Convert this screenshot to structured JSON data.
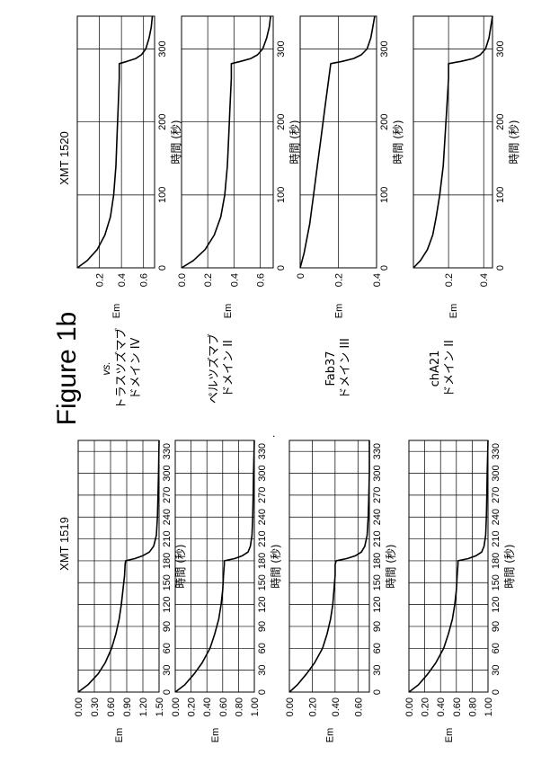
{
  "figure_label": "Figure 1b",
  "vs_label": "vs.",
  "group_titles": {
    "left": "XMT 1519",
    "right": "XMT 1520"
  },
  "x_axis_label": "時間 (秒)",
  "y_axis_label": "Em",
  "stray_mark": ".",
  "row_labels": [
    [
      "トラスツズマブ",
      "ドメイン IV"
    ],
    [
      "ペルツズマブ",
      "ドメイン II"
    ],
    [
      "Fab37",
      "ドメイン III"
    ],
    [
      "chA21",
      "ドメイン II"
    ]
  ],
  "chart_data": [
    {
      "type": "line",
      "group": "XMT 1519",
      "row": 0,
      "xlabel": "時間 (秒)",
      "ylabel": "Em",
      "xlim": [
        0,
        345
      ],
      "ylim": [
        0,
        1.5
      ],
      "xticks": [
        0,
        30,
        60,
        90,
        120,
        150,
        180,
        210,
        240,
        270,
        300,
        330
      ],
      "xtick_labels": [
        "0",
        "30",
        "60",
        "90",
        "120",
        "150",
        "180",
        "210",
        "240",
        "270",
        "300",
        "330"
      ],
      "yticks": [
        0,
        0.3,
        0.6,
        0.9,
        1.2,
        1.5
      ],
      "ytick_labels": [
        "0.00",
        "0.30",
        "0.60",
        "0.90",
        "1.20",
        "1.50"
      ],
      "grid": true,
      "series": [
        {
          "x": [
            0,
            10,
            25,
            40,
            60,
            80,
            100,
            120,
            140,
            160,
            175,
            180,
            183,
            187,
            192,
            200,
            215,
            240,
            270,
            300,
            345
          ],
          "y": [
            0,
            0.18,
            0.37,
            0.5,
            0.62,
            0.7,
            0.76,
            0.8,
            0.83,
            0.86,
            0.87,
            0.88,
            1.05,
            1.2,
            1.32,
            1.4,
            1.45,
            1.47,
            1.48,
            1.49,
            1.5
          ]
        }
      ]
    },
    {
      "type": "line",
      "group": "XMT 1519",
      "row": 1,
      "xlabel": "時間 (秒)",
      "ylabel": "Em",
      "xlim": [
        0,
        345
      ],
      "ylim": [
        0,
        1.0
      ],
      "xticks": [
        0,
        30,
        60,
        90,
        120,
        150,
        180,
        210,
        240,
        270,
        300,
        330
      ],
      "xtick_labels": [
        "0",
        "30",
        "60",
        "90",
        "120",
        "150",
        "180",
        "210",
        "240",
        "270",
        "300",
        "330"
      ],
      "yticks": [
        0,
        0.2,
        0.4,
        0.6,
        0.8,
        1.0
      ],
      "ytick_labels": [
        "0.00",
        "0.20",
        "0.40",
        "0.60",
        "0.80",
        "1.00"
      ],
      "grid": true,
      "series": [
        {
          "x": [
            0,
            10,
            25,
            40,
            60,
            80,
            100,
            120,
            140,
            160,
            175,
            180,
            183,
            187,
            192,
            200,
            215,
            240,
            270,
            300,
            345
          ],
          "y": [
            0,
            0.12,
            0.24,
            0.34,
            0.44,
            0.5,
            0.55,
            0.58,
            0.6,
            0.61,
            0.62,
            0.62,
            0.75,
            0.85,
            0.92,
            0.95,
            0.97,
            0.98,
            0.985,
            0.99,
            1.0
          ]
        }
      ]
    },
    {
      "type": "line",
      "group": "XMT 1519",
      "row": 2,
      "xlabel": "時間 (秒)",
      "ylabel": "Em",
      "xlim": [
        0,
        345
      ],
      "ylim": [
        0,
        0.7
      ],
      "xticks": [
        0,
        30,
        60,
        90,
        120,
        150,
        180,
        210,
        240,
        270,
        300,
        330
      ],
      "xtick_labels": [
        "0",
        "30",
        "60",
        "90",
        "120",
        "150",
        "180",
        "210",
        "240",
        "270",
        "300",
        "330"
      ],
      "yticks": [
        0,
        0.2,
        0.4,
        0.6
      ],
      "ytick_labels": [
        "0.00",
        "0.20",
        "0.40",
        "0.60"
      ],
      "grid": true,
      "series": [
        {
          "x": [
            0,
            10,
            25,
            40,
            60,
            80,
            100,
            120,
            140,
            160,
            175,
            180,
            183,
            187,
            192,
            200,
            215,
            240,
            270,
            300,
            345
          ],
          "y": [
            0,
            0.07,
            0.15,
            0.22,
            0.29,
            0.33,
            0.36,
            0.38,
            0.39,
            0.4,
            0.4,
            0.41,
            0.5,
            0.58,
            0.63,
            0.66,
            0.68,
            0.69,
            0.695,
            0.7,
            0.7
          ]
        }
      ]
    },
    {
      "type": "line",
      "group": "XMT 1519",
      "row": 3,
      "xlabel": "時間 (秒)",
      "ylabel": "Em",
      "xlim": [
        0,
        345
      ],
      "ylim": [
        0,
        1.0
      ],
      "xticks": [
        0,
        30,
        60,
        90,
        120,
        150,
        180,
        210,
        240,
        270,
        300,
        330
      ],
      "xtick_labels": [
        "0",
        "30",
        "60",
        "90",
        "120",
        "150",
        "180",
        "210",
        "240",
        "270",
        "300",
        "330"
      ],
      "yticks": [
        0,
        0.2,
        0.4,
        0.6,
        0.8,
        1.0
      ],
      "ytick_labels": [
        "0.00",
        "0.20",
        "0.40",
        "0.60",
        "0.80",
        "1.00"
      ],
      "grid": true,
      "series": [
        {
          "x": [
            0,
            10,
            25,
            40,
            60,
            80,
            100,
            120,
            140,
            160,
            175,
            180,
            183,
            187,
            192,
            200,
            215,
            240,
            270,
            300,
            345
          ],
          "y": [
            0,
            0.12,
            0.24,
            0.34,
            0.44,
            0.5,
            0.55,
            0.58,
            0.6,
            0.61,
            0.62,
            0.62,
            0.75,
            0.85,
            0.92,
            0.95,
            0.97,
            0.98,
            0.985,
            0.99,
            1.0
          ]
        }
      ]
    },
    {
      "type": "line",
      "group": "XMT 1520",
      "row": 0,
      "xlabel": "時間 (秒)",
      "ylabel": "Em",
      "xlim": [
        0,
        345
      ],
      "ylim": [
        0,
        0.7
      ],
      "xticks": [
        0,
        100,
        200,
        300
      ],
      "xtick_labels": [
        "0",
        "100",
        "200",
        "300"
      ],
      "yticks": [
        0.2,
        0.4,
        0.6
      ],
      "ytick_labels": [
        "0.2",
        "0.4",
        "0.6"
      ],
      "grid": true,
      "series": [
        {
          "x": [
            0,
            10,
            25,
            45,
            70,
            100,
            140,
            180,
            220,
            260,
            280,
            283,
            287,
            292,
            300,
            315,
            330,
            345
          ],
          "y": [
            0,
            0.09,
            0.18,
            0.25,
            0.3,
            0.33,
            0.35,
            0.36,
            0.37,
            0.38,
            0.38,
            0.45,
            0.53,
            0.58,
            0.62,
            0.65,
            0.67,
            0.68
          ]
        }
      ]
    },
    {
      "type": "line",
      "group": "XMT 1520",
      "row": 1,
      "xlabel": "時間 (秒)",
      "ylabel": "Em",
      "xlim": [
        0,
        345
      ],
      "ylim": [
        0,
        0.7
      ],
      "xticks": [
        0,
        100,
        200,
        300
      ],
      "xtick_labels": [
        "0",
        "100",
        "200",
        "300"
      ],
      "yticks": [
        0,
        0.2,
        0.4,
        0.6
      ],
      "ytick_labels": [
        "0.0",
        "0.2",
        "0.4",
        "0.6"
      ],
      "grid": true,
      "series": [
        {
          "x": [
            0,
            10,
            25,
            45,
            70,
            100,
            140,
            180,
            220,
            260,
            280,
            283,
            287,
            292,
            300,
            315,
            330,
            345
          ],
          "y": [
            0,
            0.09,
            0.18,
            0.25,
            0.3,
            0.33,
            0.35,
            0.36,
            0.37,
            0.38,
            0.38,
            0.45,
            0.53,
            0.58,
            0.62,
            0.65,
            0.67,
            0.68
          ]
        }
      ]
    },
    {
      "type": "line",
      "group": "XMT 1520",
      "row": 2,
      "xlabel": "時間 (秒)",
      "ylabel": "Em",
      "xlim": [
        0,
        345
      ],
      "ylim": [
        0,
        0.4
      ],
      "xticks": [
        0,
        100,
        200,
        300
      ],
      "xtick_labels": [
        "0",
        "100",
        "200",
        "300"
      ],
      "yticks": [
        0,
        0.2,
        0.4
      ],
      "ytick_labels": [
        "0",
        "0.2",
        "0.4"
      ],
      "grid": true,
      "series": [
        {
          "x": [
            0,
            20,
            60,
            100,
            140,
            180,
            220,
            260,
            280,
            283,
            287,
            292,
            300,
            315,
            330,
            345
          ],
          "y": [
            0,
            0.02,
            0.05,
            0.07,
            0.09,
            0.11,
            0.13,
            0.15,
            0.16,
            0.22,
            0.28,
            0.32,
            0.35,
            0.37,
            0.38,
            0.39
          ]
        }
      ]
    },
    {
      "type": "line",
      "group": "XMT 1520",
      "row": 3,
      "xlabel": "時間 (秒)",
      "ylabel": "Em",
      "xlim": [
        0,
        345
      ],
      "ylim": [
        0,
        0.45
      ],
      "xticks": [
        0,
        100,
        200,
        300
      ],
      "xtick_labels": [
        "0",
        "100",
        "200",
        "300"
      ],
      "yticks": [
        0.2,
        0.4
      ],
      "ytick_labels": [
        "0.2",
        "0.4"
      ],
      "grid": true,
      "series": [
        {
          "x": [
            0,
            10,
            25,
            45,
            70,
            100,
            140,
            180,
            220,
            260,
            280,
            283,
            287,
            292,
            300,
            315,
            330,
            345
          ],
          "y": [
            0,
            0.04,
            0.08,
            0.11,
            0.13,
            0.15,
            0.17,
            0.18,
            0.19,
            0.2,
            0.2,
            0.27,
            0.34,
            0.38,
            0.41,
            0.43,
            0.44,
            0.45
          ]
        }
      ]
    }
  ]
}
